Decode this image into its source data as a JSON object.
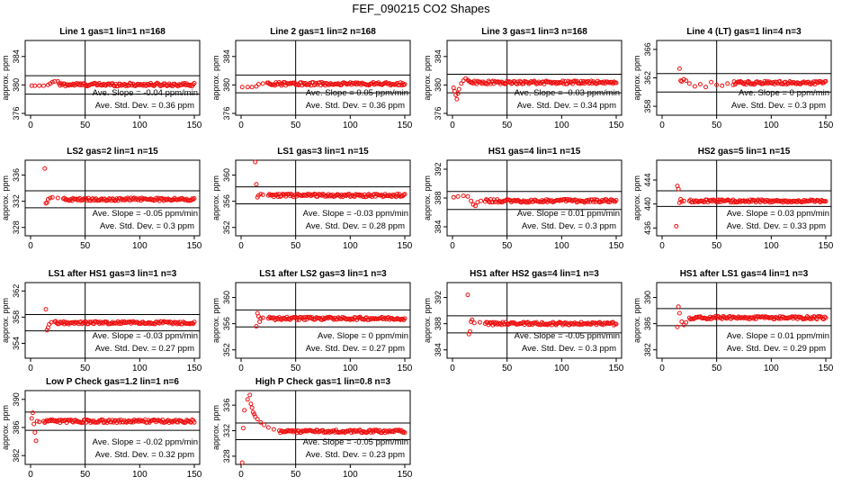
{
  "page": {
    "title": "FEF_090215  CO2 Shapes"
  },
  "colors": {
    "points": "#ee1111",
    "axes": "#000000",
    "refline": "#000000"
  },
  "chart_data": [
    {
      "type": "scatter",
      "title": "Line 1 gas=1 lin=1 n=168",
      "ylabel": "approx. ppm",
      "xlim": [
        0,
        150
      ],
      "ylim": [
        376,
        386
      ],
      "xticks": [
        0,
        50,
        100,
        150
      ],
      "yticks": [
        376,
        380,
        384
      ],
      "vline": 50,
      "hlines": [
        378.7,
        381.3
      ],
      "annotations": [
        "Ave. Slope =  -0.04  ppm/min",
        "Ave. Std. Dev. =  0.36  ppm"
      ],
      "shape": {
        "start_x": 1,
        "mean": 380.05,
        "base": 380.05,
        "pts": [
          [
            1,
            379.9
          ],
          [
            4,
            379.9
          ],
          [
            8,
            379.9
          ],
          [
            12,
            379.9
          ],
          [
            16,
            380.0
          ],
          [
            18,
            380.2
          ],
          [
            20,
            380.4
          ],
          [
            22,
            380.5
          ],
          [
            25,
            380.5
          ]
        ]
      }
    },
    {
      "type": "scatter",
      "title": "Line 2 gas=1 lin=2 n=168",
      "ylabel": "approx. ppm",
      "xlim": [
        0,
        150
      ],
      "ylim": [
        376,
        386
      ],
      "xticks": [
        0,
        50,
        100,
        150
      ],
      "yticks": [
        376,
        380,
        384
      ],
      "vline": 50,
      "hlines": [
        378.9,
        381.4
      ],
      "annotations": [
        "Ave. Slope =  0.05  ppm/min",
        "Ave. Std. Dev. =  0.36  ppm"
      ],
      "shape": {
        "start_x": 1,
        "mean": 380.15,
        "base": 380.15,
        "pts": [
          [
            1,
            379.7
          ],
          [
            6,
            379.7
          ],
          [
            10,
            379.7
          ],
          [
            14,
            379.8
          ],
          [
            16,
            380.1
          ],
          [
            20,
            380.2
          ],
          [
            24,
            380.3
          ]
        ]
      }
    },
    {
      "type": "scatter",
      "title": "Line 3 gas=1 lin=3 n=168",
      "ylabel": "approx. ppm",
      "xlim": [
        0,
        150
      ],
      "ylim": [
        376,
        386
      ],
      "xticks": [
        0,
        50,
        100,
        150
      ],
      "yticks": [
        376,
        380,
        384
      ],
      "vline": 50,
      "hlines": [
        378.9,
        381.5
      ],
      "annotations": [
        "Ave. Slope =  -0.03  ppm/min",
        "Ave. Std. Dev. =  0.34  ppm"
      ],
      "shape": {
        "start_x": 1,
        "mean": 380.35,
        "base": 380.35,
        "pts": [
          [
            1,
            379.6
          ],
          [
            2,
            379.1
          ],
          [
            3,
            378.6
          ],
          [
            4,
            378.0
          ],
          [
            5,
            378.8
          ],
          [
            6,
            379.4
          ],
          [
            8,
            380.2
          ],
          [
            10,
            380.6
          ],
          [
            12,
            380.9
          ],
          [
            14,
            380.7
          ]
        ]
      }
    },
    {
      "type": "scatter",
      "title": "Line 4 (LT) gas=1 lin=4 n=3",
      "ylabel": "approx. ppm",
      "xlim": [
        0,
        150
      ],
      "ylim": [
        357,
        367
      ],
      "xticks": [
        0,
        50,
        100,
        150
      ],
      "yticks": [
        358,
        362,
        366
      ],
      "vline": 50,
      "hlines": [
        360.0,
        362.6
      ],
      "annotations": [
        "Ave. Slope =  0  ppm/min",
        "Ave. Std. Dev. =  0.3  ppm"
      ],
      "shape": {
        "start_x": 16,
        "mean": 361.3,
        "base": 361.3,
        "pts": [
          [
            16,
            363.3
          ],
          [
            17,
            361.6
          ],
          [
            18,
            361.5
          ],
          [
            20,
            361.8
          ],
          [
            22,
            361.6
          ],
          [
            25,
            361.2
          ],
          [
            30,
            360.8
          ],
          [
            35,
            361.1
          ],
          [
            40,
            360.7
          ],
          [
            45,
            361.4
          ],
          [
            50,
            361.0
          ],
          [
            55,
            360.9
          ],
          [
            60,
            361.2
          ],
          [
            65,
            361.0
          ]
        ]
      }
    },
    {
      "type": "scatter",
      "title": "LS2 gas=2 lin=1 n=15",
      "ylabel": "approx. ppm",
      "xlim": [
        0,
        150
      ],
      "ylim": [
        327,
        338
      ],
      "xticks": [
        0,
        50,
        100,
        150
      ],
      "yticks": [
        328,
        332,
        336
      ],
      "vline": 50,
      "hlines": [
        331.0,
        333.6
      ],
      "annotations": [
        "Ave. Slope =  -0.05  ppm/min",
        "Ave. Std. Dev. =  0.3  ppm"
      ],
      "shape": {
        "start_x": 13,
        "mean": 332.3,
        "base": 332.3,
        "pts": [
          [
            13,
            337.0
          ],
          [
            14,
            331.7
          ],
          [
            15,
            331.8
          ],
          [
            16,
            332.3
          ],
          [
            18,
            332.5
          ],
          [
            20,
            332.6
          ],
          [
            25,
            332.5
          ],
          [
            30,
            332.4
          ]
        ]
      }
    },
    {
      "type": "scatter",
      "title": "LS1 gas=3 lin=1 n=15",
      "ylabel": "approx. ppm",
      "xlim": [
        0,
        150
      ],
      "ylim": [
        351,
        362
      ],
      "xticks": [
        0,
        50,
        100,
        150
      ],
      "yticks": [
        352,
        356,
        360
      ],
      "vline": 50,
      "hlines": [
        355.6,
        358.2
      ],
      "annotations": [
        "Ave. Slope =  -0.03  ppm/min",
        "Ave. Std. Dev. =  0.28  ppm"
      ],
      "shape": {
        "start_x": 13,
        "mean": 356.9,
        "base": 356.9,
        "pts": [
          [
            13,
            362.0
          ],
          [
            14,
            358.6
          ],
          [
            15,
            356.6
          ],
          [
            16,
            356.9
          ],
          [
            18,
            357.1
          ],
          [
            20,
            357.0
          ],
          [
            25,
            356.9
          ]
        ]
      }
    },
    {
      "type": "scatter",
      "title": "HS1 gas=4 lin=1 n=15",
      "ylabel": "approx. ppm",
      "xlim": [
        0,
        150
      ],
      "ylim": [
        383,
        393
      ],
      "xticks": [
        0,
        50,
        100,
        150
      ],
      "yticks": [
        384,
        388,
        392
      ],
      "vline": 50,
      "hlines": [
        386.4,
        388.9
      ],
      "annotations": [
        "Ave. Slope =  0.01  ppm/min",
        "Ave. Std. Dev. =  0.3  ppm"
      ],
      "shape": {
        "start_x": 1,
        "mean": 387.6,
        "base": 387.6,
        "pts": [
          [
            1,
            388.1
          ],
          [
            5,
            388.2
          ],
          [
            10,
            388.3
          ],
          [
            14,
            388.2
          ],
          [
            17,
            387.6
          ],
          [
            19,
            387.1
          ],
          [
            21,
            386.9
          ],
          [
            23,
            387.4
          ],
          [
            26,
            387.6
          ],
          [
            30,
            387.5
          ]
        ]
      }
    },
    {
      "type": "scatter",
      "title": "HS2 gas=5 lin=1 n=15",
      "ylabel": "approx. ppm",
      "xlim": [
        0,
        150
      ],
      "ylim": [
        435,
        447
      ],
      "xticks": [
        0,
        50,
        100,
        150
      ],
      "yticks": [
        436,
        440,
        444
      ],
      "vline": 50,
      "hlines": [
        439.6,
        442.2
      ],
      "annotations": [
        "Ave. Slope =  0.03  ppm/min",
        "Ave. Std. Dev. =  0.33  ppm"
      ],
      "shape": {
        "start_x": 13,
        "mean": 440.9,
        "base": 440.5,
        "pts": [
          [
            13,
            436.3
          ],
          [
            14,
            443.0
          ],
          [
            15,
            442.5
          ],
          [
            16,
            440.2
          ],
          [
            17,
            440.8
          ],
          [
            18,
            440.4
          ],
          [
            20,
            440.5
          ],
          [
            25,
            440.5
          ]
        ]
      }
    },
    {
      "type": "scatter",
      "title": "LS1 after HS1 gas=3 lin=1 n=3",
      "ylabel": "approx. ppm",
      "xlim": [
        0,
        150
      ],
      "ylim": [
        352,
        363
      ],
      "xticks": [
        0,
        50,
        100,
        150
      ],
      "yticks": [
        354,
        358,
        362
      ],
      "vline": 50,
      "hlines": [
        355.9,
        358.4
      ],
      "annotations": [
        "Ave. Slope =  -0.03  ppm/min",
        "Ave. Std. Dev. =  0.27  ppm"
      ],
      "shape": {
        "start_x": 14,
        "mean": 357.15,
        "base": 357.15,
        "pts": [
          [
            14,
            359.2
          ],
          [
            15,
            356.0
          ],
          [
            16,
            356.4
          ],
          [
            17,
            356.9
          ],
          [
            19,
            357.2
          ],
          [
            22,
            357.3
          ]
        ]
      }
    },
    {
      "type": "scatter",
      "title": "LS1 after LS2 gas=3 lin=1 n=3",
      "ylabel": "approx. ppm",
      "xlim": [
        0,
        150
      ],
      "ylim": [
        351,
        362
      ],
      "xticks": [
        0,
        50,
        100,
        150
      ],
      "yticks": [
        352,
        356,
        360
      ],
      "vline": 50,
      "hlines": [
        355.5,
        358.1
      ],
      "annotations": [
        "Ave. Slope =  0  ppm/min",
        "Ave. Std. Dev. =  0.27  ppm"
      ],
      "shape": {
        "start_x": 14,
        "mean": 356.8,
        "base": 356.8,
        "pts": [
          [
            14,
            355.6
          ],
          [
            15,
            357.6
          ],
          [
            16,
            357.1
          ],
          [
            17,
            356.3
          ],
          [
            18,
            356.8
          ],
          [
            20,
            356.9
          ],
          [
            25,
            356.8
          ]
        ]
      }
    },
    {
      "type": "scatter",
      "title": "HS1 after HS2 gas=4 lin=1 n=3",
      "ylabel": "approx. ppm",
      "xlim": [
        0,
        150
      ],
      "ylim": [
        383,
        394
      ],
      "xticks": [
        0,
        50,
        100,
        150
      ],
      "yticks": [
        384,
        388,
        392
      ],
      "vline": 50,
      "hlines": [
        386.6,
        389.2
      ],
      "annotations": [
        "Ave. Slope =  -0.05  ppm/min",
        "Ave. Std. Dev. =  0.3  ppm"
      ],
      "shape": {
        "start_x": 14,
        "mean": 388.0,
        "base": 388.0,
        "pts": [
          [
            14,
            392.4
          ],
          [
            15,
            386.4
          ],
          [
            16,
            386.8
          ],
          [
            17,
            388.3
          ],
          [
            18,
            388.6
          ],
          [
            20,
            388.1
          ],
          [
            25,
            388.2
          ],
          [
            30,
            388.0
          ]
        ]
      }
    },
    {
      "type": "scatter",
      "title": "HS1 after LS1 gas=4 lin=1 n=3",
      "ylabel": "approx. ppm",
      "xlim": [
        0,
        150
      ],
      "ylim": [
        381,
        392
      ],
      "xticks": [
        0,
        50,
        100,
        150
      ],
      "yticks": [
        382,
        386,
        390
      ],
      "vline": 50,
      "hlines": [
        385.7,
        388.3
      ],
      "annotations": [
        "Ave. Slope =  0.01  ppm/min",
        "Ave. Std. Dev. =  0.29  ppm"
      ],
      "shape": {
        "start_x": 14,
        "mean": 387.0,
        "base": 386.9,
        "pts": [
          [
            14,
            385.5
          ],
          [
            15,
            388.6
          ],
          [
            16,
            387.6
          ],
          [
            18,
            386.3
          ],
          [
            20,
            385.8
          ],
          [
            22,
            386.2
          ],
          [
            25,
            386.9
          ]
        ]
      }
    },
    {
      "type": "scatter",
      "title": "Low P Check gas=1.2 lin=1 n=6",
      "ylabel": "approx. ppm",
      "xlim": [
        0,
        150
      ],
      "ylim": [
        381,
        391
      ],
      "xticks": [
        0,
        50,
        100,
        150
      ],
      "yticks": [
        382,
        386,
        390
      ],
      "vline": 50,
      "hlines": [
        385.6,
        388.2
      ],
      "annotations": [
        "Ave. Slope =  -0.02  ppm/min",
        "Ave. Std. Dev. =  0.32  ppm"
      ],
      "shape": {
        "start_x": 1,
        "mean": 386.9,
        "base": 386.9,
        "pts": [
          [
            1,
            387.3
          ],
          [
            2,
            388.1
          ],
          [
            3,
            386.5
          ],
          [
            4,
            385.3
          ],
          [
            5,
            384.1
          ],
          [
            6,
            386.9
          ],
          [
            8,
            386.8
          ],
          [
            12,
            386.9
          ]
        ]
      }
    },
    {
      "type": "scatter",
      "title": "High P Check gas=1 lin=0.8 n=3",
      "ylabel": "approx. ppm",
      "xlim": [
        0,
        150
      ],
      "ylim": [
        327,
        338
      ],
      "xticks": [
        0,
        50,
        100,
        150
      ],
      "yticks": [
        328,
        332,
        336
      ],
      "vline": 50,
      "hlines": [
        330.6,
        333.2
      ],
      "annotations": [
        "Ave. Slope =  -0.05  ppm/min",
        "Ave. Std. Dev. =  0.23  ppm"
      ],
      "shape": {
        "start_x": 1,
        "mean": 331.9,
        "base": 331.9,
        "pts": [
          [
            1,
            327.0
          ],
          [
            2,
            332.4
          ],
          [
            3,
            335.2
          ],
          [
            6,
            336.9
          ],
          [
            8,
            337.6
          ],
          [
            9,
            336.2
          ],
          [
            10,
            335.6
          ],
          [
            11,
            334.9
          ],
          [
            12,
            334.6
          ],
          [
            13,
            334.2
          ],
          [
            15,
            333.8
          ],
          [
            18,
            333.3
          ],
          [
            21,
            332.9
          ],
          [
            25,
            332.5
          ],
          [
            30,
            332.2
          ],
          [
            35,
            332.0
          ]
        ]
      }
    }
  ]
}
